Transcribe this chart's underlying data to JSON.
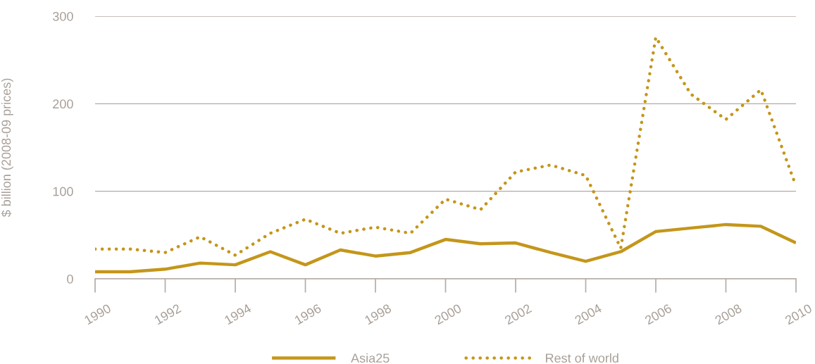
{
  "chart_data": {
    "type": "line",
    "ylabel": "$ billion (2008-09 prices)",
    "x": [
      1990,
      1991,
      1992,
      1993,
      1994,
      1995,
      1996,
      1997,
      1998,
      1999,
      2000,
      2001,
      2002,
      2003,
      2004,
      2005,
      2006,
      2007,
      2008,
      2009,
      2010
    ],
    "series": [
      {
        "name": "Asia25",
        "color": "#c4961a",
        "line_style": "solid",
        "values": [
          8,
          8,
          11,
          18,
          16,
          31,
          16,
          33,
          26,
          30,
          45,
          40,
          41,
          30,
          20,
          31,
          54,
          58,
          62,
          60,
          41
        ]
      },
      {
        "name": "Rest of world",
        "color": "#c4961a",
        "line_style": "dotted",
        "values": [
          34,
          34,
          30,
          48,
          27,
          52,
          68,
          52,
          59,
          52,
          91,
          79,
          122,
          130,
          118,
          35,
          276,
          211,
          182,
          216,
          106
        ]
      }
    ],
    "xlim": [
      1990,
      2010
    ],
    "xticks": [
      1990,
      1992,
      1994,
      1996,
      1998,
      2000,
      2002,
      2004,
      2006,
      2008,
      2010
    ],
    "ylim": [
      0,
      300
    ],
    "yticks": [
      0,
      100,
      200,
      300
    ],
    "grid": "y",
    "legend": "bottom",
    "marker": "none"
  }
}
